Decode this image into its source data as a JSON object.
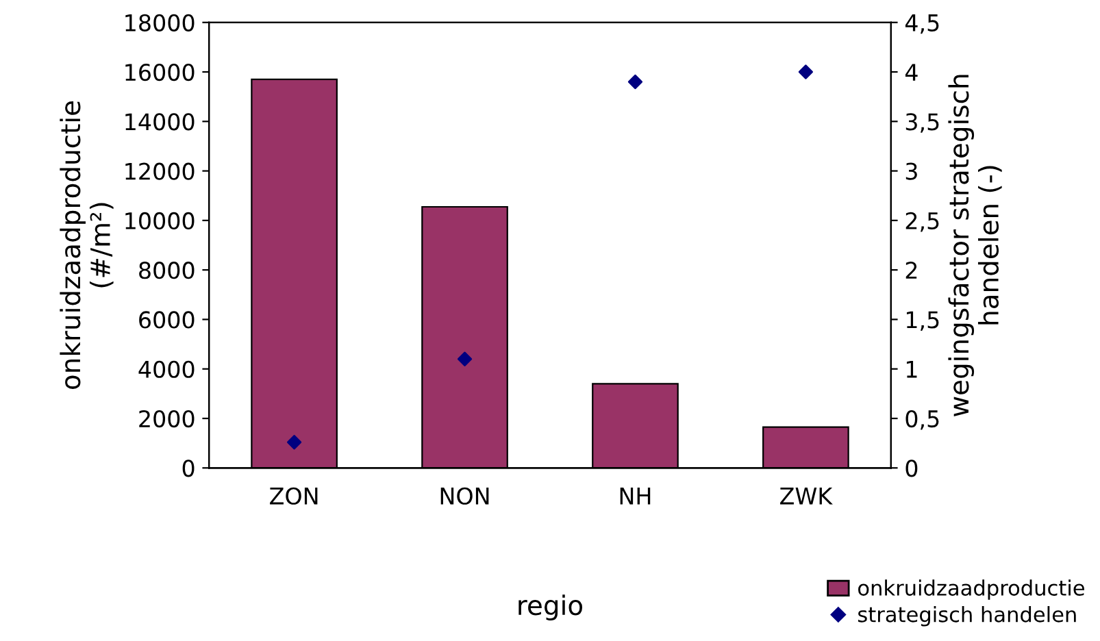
{
  "chart_data": {
    "type": "bar",
    "xlabel": "regio",
    "ylabel": "onkruidzaadproductie\n(#/m²)",
    "y2label": "wegingsfactor strategisch\nhandelen (-)",
    "categories": [
      "ZON",
      "NON",
      "NH",
      "ZWK"
    ],
    "series": [
      {
        "name": "onkruidzaadproductie",
        "color": "#993366",
        "values": [
          15700,
          10550,
          3400,
          1650
        ]
      },
      {
        "name": "strategisch handelen",
        "type": "scatter",
        "axis": "y2",
        "color": "#000080",
        "marker": "diamond",
        "values": [
          0.26,
          1.1,
          3.9,
          4.0
        ]
      }
    ],
    "ylim": [
      0,
      18000
    ],
    "yticks": [
      0,
      2000,
      4000,
      6000,
      8000,
      10000,
      12000,
      14000,
      16000,
      18000
    ],
    "y2lim": [
      0,
      4.5
    ],
    "y2ticks": [
      0,
      {
        "value": 0.5,
        "label": "0,5"
      },
      1,
      {
        "value": 1.5,
        "label": "1,5"
      },
      2,
      {
        "value": 2.5,
        "label": "2,5"
      },
      3,
      {
        "value": 3.5,
        "label": "3,5"
      },
      4,
      {
        "value": 4.5,
        "label": "4,5"
      }
    ],
    "grid": false,
    "legend": "bottom right"
  }
}
